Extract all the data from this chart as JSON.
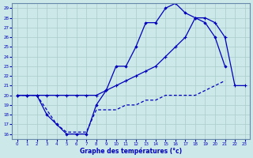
{
  "xlabel": "Graphe des températures (°c)",
  "bg_color": "#cce8e8",
  "grid_color": "#aacccc",
  "line_color": "#0000bb",
  "xlim": [
    -0.5,
    23.5
  ],
  "ylim": [
    15.5,
    29.5
  ],
  "xticks": [
    0,
    1,
    2,
    3,
    4,
    5,
    6,
    7,
    8,
    9,
    10,
    11,
    12,
    13,
    14,
    15,
    16,
    17,
    18,
    19,
    20,
    21,
    22,
    23
  ],
  "yticks": [
    16,
    17,
    18,
    19,
    20,
    21,
    22,
    23,
    24,
    25,
    26,
    27,
    28,
    29
  ],
  "line1_x": [
    0,
    1,
    2,
    3,
    4,
    5,
    6,
    7,
    8,
    9,
    10,
    11,
    12,
    13,
    14,
    15,
    16,
    17,
    18,
    19,
    20,
    21
  ],
  "line1_y": [
    20,
    20,
    20,
    18,
    17,
    16,
    16,
    16,
    19,
    20.5,
    23,
    23,
    25,
    27.5,
    27.5,
    29,
    29.5,
    28.5,
    28,
    27.5,
    26,
    23
  ],
  "line2_x": [
    0,
    1,
    2,
    3,
    4,
    5,
    6,
    7,
    8,
    9,
    10,
    11,
    12,
    13,
    14,
    15,
    16,
    17,
    18,
    19,
    20,
    21,
    22,
    23
  ],
  "line2_y": [
    20,
    20,
    20,
    20,
    20,
    20,
    20,
    20,
    20,
    20.5,
    21,
    21.5,
    22,
    22.5,
    23,
    24,
    25,
    26,
    28,
    28,
    27.5,
    26,
    21,
    21
  ],
  "line3_x": [
    0,
    1,
    2,
    3,
    4,
    5,
    6,
    7,
    8,
    9,
    10,
    11,
    12,
    13,
    14,
    15,
    16,
    17,
    18,
    19,
    20,
    21,
    22,
    23
  ],
  "line3_y": [
    20,
    20,
    20,
    18.5,
    17,
    16.2,
    16.2,
    16.2,
    18.5,
    18.5,
    18.5,
    19,
    19,
    19.5,
    19.5,
    20,
    20,
    20,
    20,
    20.5,
    21,
    21.5,
    null,
    null
  ]
}
